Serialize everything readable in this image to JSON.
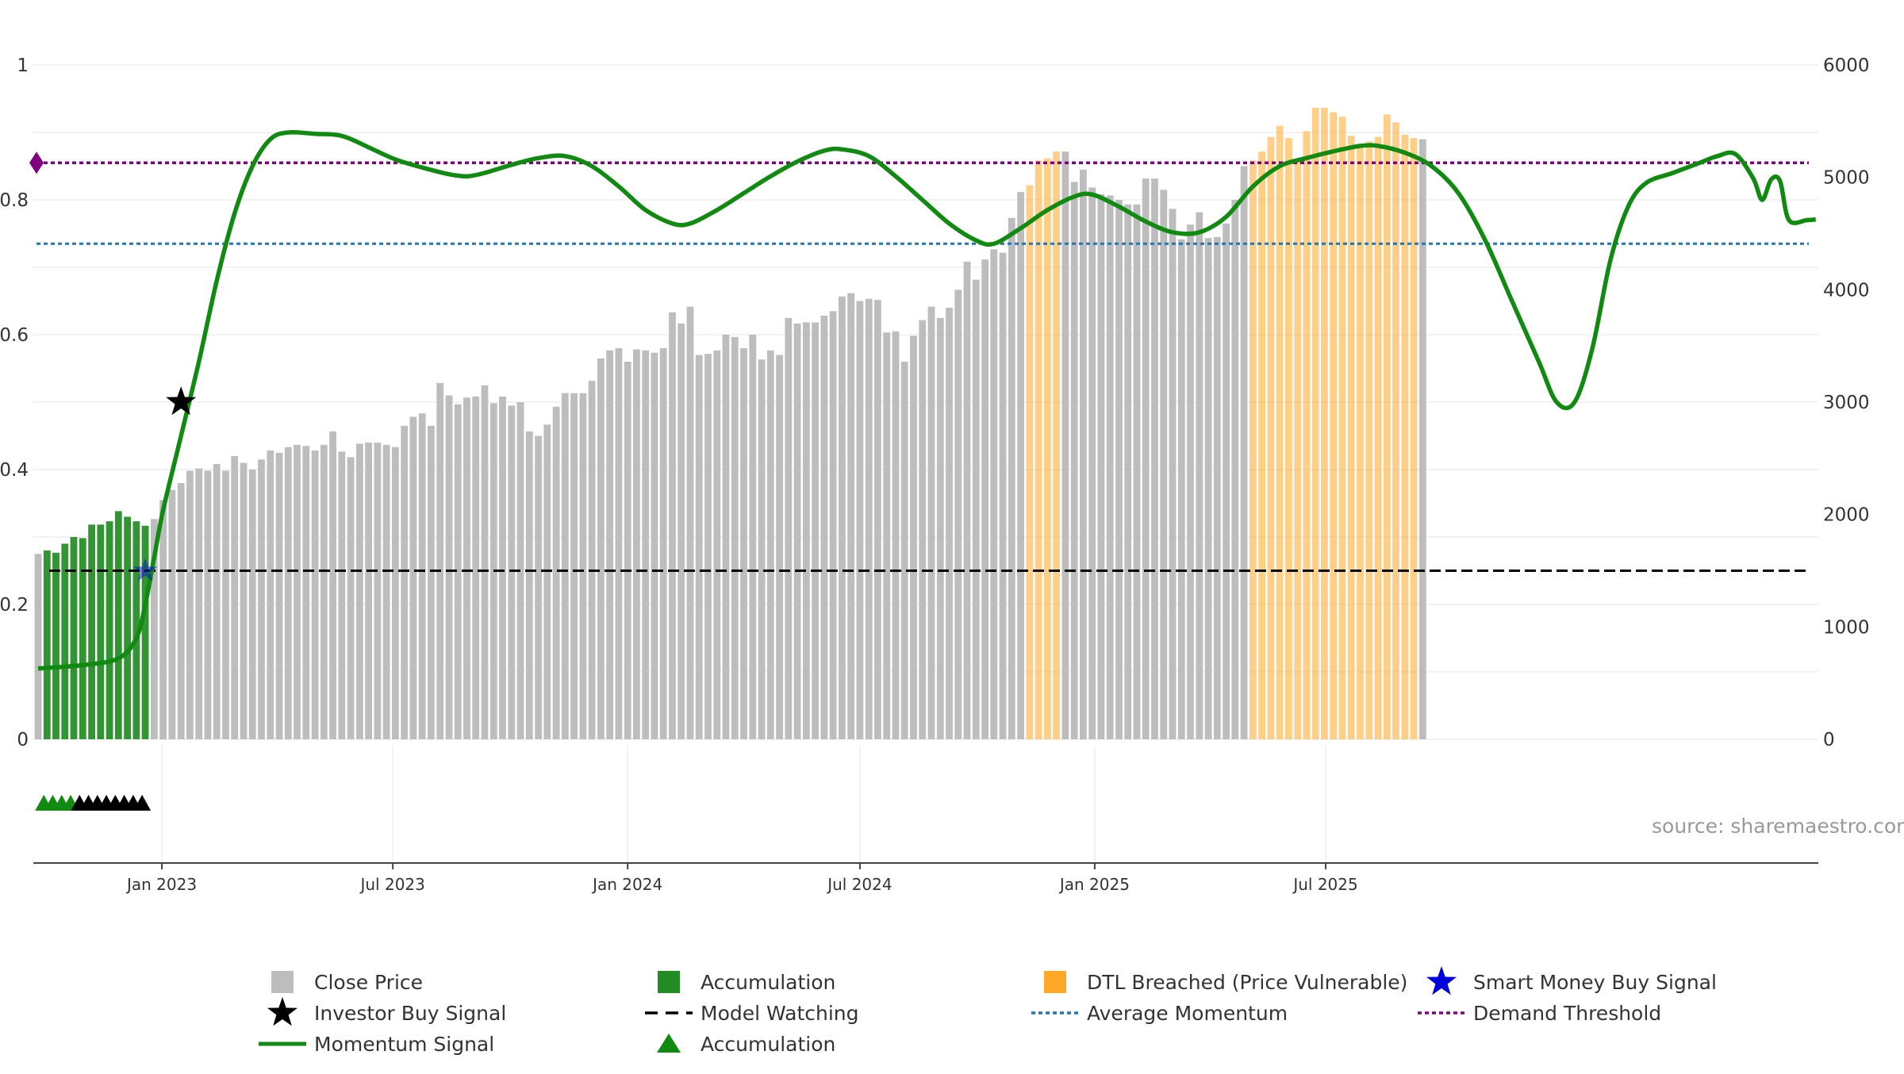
{
  "chart_data": {
    "type": "bar",
    "title": "",
    "x_axis": {
      "tick_labels": [
        "Jan 2023",
        "Jul 2023",
        "Jan 2024",
        "Jul 2024",
        "Jan 2025",
        "Jul 2025"
      ]
    },
    "y_left": {
      "label": "",
      "ylim": [
        0,
        1
      ],
      "tick_labels": [
        "0",
        "0.2",
        "0.4",
        "0.6",
        "0.8",
        "1"
      ]
    },
    "y_right": {
      "label": "",
      "ylim": [
        0,
        6000
      ],
      "tick_labels": [
        "0",
        "1000",
        "2000",
        "3000",
        "4000",
        "5000",
        "6000"
      ]
    },
    "start_week": "2022-09-26",
    "end_week": "2025-09-01",
    "close_price": [
      1650,
      1680,
      1660,
      1740,
      1800,
      1790,
      1910,
      1910,
      1940,
      2030,
      1980,
      1940,
      1900,
      1960,
      2130,
      2220,
      2280,
      2390,
      2410,
      2390,
      2450,
      2390,
      2520,
      2460,
      2400,
      2490,
      2570,
      2550,
      2600,
      2620,
      2610,
      2570,
      2620,
      2740,
      2560,
      2510,
      2630,
      2640,
      2640,
      2620,
      2600,
      2790,
      2870,
      2900,
      2790,
      3170,
      3060,
      2980,
      3040,
      3050,
      3150,
      2990,
      3050,
      2970,
      3000,
      2740,
      2700,
      2800,
      2960,
      3080,
      3080,
      3080,
      3190,
      3390,
      3460,
      3480,
      3360,
      3470,
      3460,
      3440,
      3480,
      3800,
      3700,
      3850,
      3420,
      3430,
      3460,
      3600,
      3580,
      3480,
      3600,
      3380,
      3460,
      3420,
      3750,
      3700,
      3710,
      3710,
      3770,
      3810,
      3940,
      3970,
      3900,
      3920,
      3910,
      3620,
      3630,
      3360,
      3590,
      3730,
      3850,
      3750,
      3840,
      4000,
      4250,
      4090,
      4270,
      4360,
      4330,
      4640,
      4870,
      4930,
      5150,
      5170,
      5230,
      5230,
      4960,
      5070,
      4910,
      4850,
      4840,
      4800,
      4760,
      4760,
      4990,
      4990,
      4890,
      4720,
      4450,
      4580,
      4690,
      4460,
      4470,
      4590,
      4800,
      5100,
      5150,
      5230,
      5360,
      5460,
      5350,
      5160,
      5410,
      5620,
      5620,
      5580,
      5540,
      5370,
      5300,
      5320,
      5360,
      5560,
      5490,
      5380,
      5350,
      5340
    ],
    "categories_by_bar": {
      "accumulation_bars": [
        1,
        12
      ],
      "dtl_breached_bars": [
        [
          111,
          114
        ],
        [
          136,
          154
        ]
      ]
    },
    "momentum": [
      [
        0,
        0.105
      ],
      [
        5,
        0.11
      ],
      [
        9,
        0.12
      ],
      [
        11,
        0.15
      ],
      [
        12,
        0.2
      ],
      [
        13,
        0.27
      ],
      [
        14,
        0.34
      ],
      [
        16,
        0.45
      ],
      [
        18,
        0.56
      ],
      [
        20,
        0.68
      ],
      [
        22,
        0.78
      ],
      [
        24,
        0.85
      ],
      [
        26,
        0.89
      ],
      [
        28,
        0.9
      ],
      [
        31,
        0.898
      ],
      [
        34,
        0.895
      ],
      [
        37,
        0.878
      ],
      [
        40,
        0.86
      ],
      [
        43,
        0.848
      ],
      [
        46,
        0.838
      ],
      [
        48,
        0.835
      ],
      [
        50,
        0.84
      ],
      [
        53,
        0.852
      ],
      [
        56,
        0.862
      ],
      [
        59,
        0.865
      ],
      [
        62,
        0.85
      ],
      [
        65,
        0.82
      ],
      [
        68,
        0.785
      ],
      [
        71,
        0.765
      ],
      [
        73,
        0.765
      ],
      [
        76,
        0.785
      ],
      [
        79,
        0.81
      ],
      [
        82,
        0.835
      ],
      [
        85,
        0.857
      ],
      [
        88,
        0.873
      ],
      [
        90,
        0.875
      ],
      [
        93,
        0.865
      ],
      [
        96,
        0.835
      ],
      [
        99,
        0.8
      ],
      [
        102,
        0.765
      ],
      [
        105,
        0.74
      ],
      [
        107,
        0.735
      ],
      [
        110,
        0.758
      ],
      [
        113,
        0.785
      ],
      [
        116,
        0.805
      ],
      [
        118,
        0.808
      ],
      [
        121,
        0.79
      ],
      [
        124,
        0.768
      ],
      [
        127,
        0.752
      ],
      [
        130,
        0.752
      ],
      [
        133,
        0.775
      ],
      [
        136,
        0.82
      ],
      [
        139,
        0.85
      ],
      [
        142,
        0.862
      ],
      [
        145,
        0.872
      ],
      [
        148,
        0.88
      ],
      [
        150,
        0.88
      ],
      [
        153,
        0.87
      ],
      [
        156,
        0.85
      ],
      [
        159,
        0.81
      ],
      [
        162,
        0.74
      ],
      [
        165,
        0.65
      ],
      [
        168,
        0.56
      ],
      [
        170,
        0.5
      ],
      [
        172,
        0.5
      ],
      [
        174,
        0.58
      ],
      [
        176,
        0.71
      ],
      [
        178,
        0.79
      ],
      [
        180,
        0.825
      ],
      [
        183,
        0.84
      ],
      [
        186,
        0.855
      ],
      [
        188,
        0.865
      ],
      [
        190,
        0.868
      ],
      [
        192,
        0.832
      ],
      [
        193,
        0.8
      ],
      [
        194,
        0.83
      ],
      [
        195,
        0.828
      ],
      [
        196,
        0.77
      ],
      [
        198,
        0.77
      ],
      [
        199,
        0.771
      ]
    ],
    "markers": {
      "investor_buy_signal": {
        "week": 16,
        "value": 0.5
      },
      "smart_money_buy_signal": {
        "week": 12,
        "value": 0.25
      },
      "accumulation_triangles_green": [
        1,
        2,
        3,
        4
      ],
      "accumulation_triangles_black": [
        5,
        6,
        7,
        8,
        9,
        10,
        11,
        12
      ],
      "demand_threshold_marker": {
        "week": 0,
        "value": 0.855
      }
    },
    "reference_lines": {
      "model_watching": 0.25,
      "average_momentum": 0.735,
      "demand_threshold": 0.855
    },
    "colors": {
      "close_price": "#bdbdbd",
      "accumulation": "#228b22",
      "dtl_breached": "#ffa726",
      "momentum": "#108a10",
      "model_watching": "#000000",
      "average_momentum": "#1f77b4",
      "demand_threshold": "#800080",
      "smart_money": "#0000dd",
      "investor": "#000000",
      "axis": "#444444",
      "grid": "#eeeeee"
    },
    "legend": {
      "position": "bottom",
      "entries": [
        {
          "label": "Close Price",
          "symbol": "square",
          "color": "#bdbdbd"
        },
        {
          "label": "Accumulation",
          "symbol": "square",
          "color": "#228b22"
        },
        {
          "label": "DTL Breached (Price Vulnerable)",
          "symbol": "square",
          "color": "#ffa726"
        },
        {
          "label": "Smart Money Buy Signal",
          "symbol": "star",
          "color": "#0000dd"
        },
        {
          "label": "Investor Buy Signal",
          "symbol": "star",
          "color": "#000000"
        },
        {
          "label": "Model Watching",
          "symbol": "dash",
          "color": "#000000"
        },
        {
          "label": "Average Momentum",
          "symbol": "dot",
          "color": "#1f77b4"
        },
        {
          "label": "Demand Threshold",
          "symbol": "dot",
          "color": "#800080"
        },
        {
          "label": "Momentum Signal",
          "symbol": "line",
          "color": "#108a10"
        },
        {
          "label": "Accumulation",
          "symbol": "triangle",
          "color": "#108a10"
        }
      ]
    },
    "annotation": "source: sharemaestro.com"
  }
}
